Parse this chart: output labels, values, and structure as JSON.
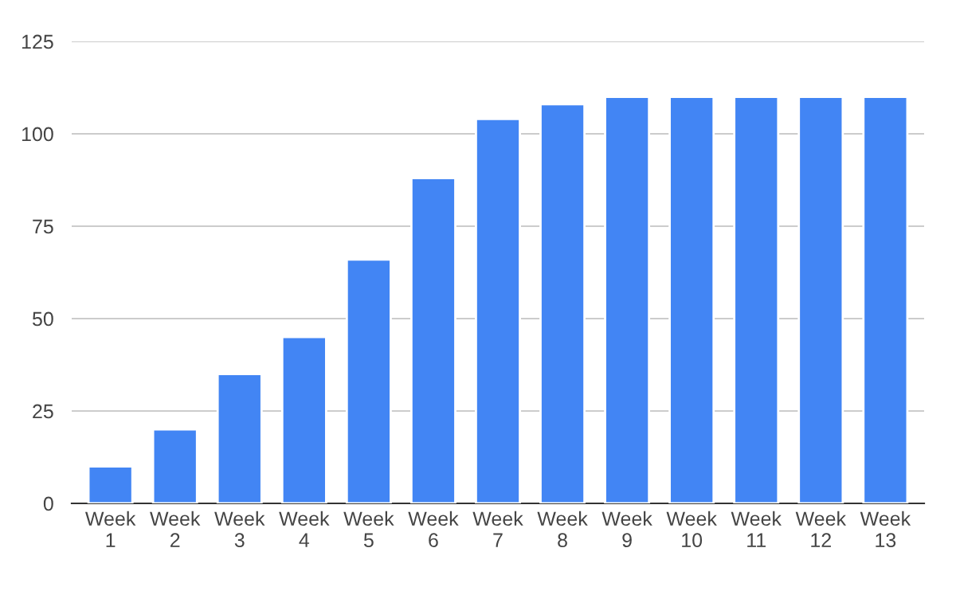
{
  "chart_data": {
    "type": "bar",
    "categories": [
      "Week 1",
      "Week 2",
      "Week 3",
      "Week 4",
      "Week 5",
      "Week 6",
      "Week 7",
      "Week 8",
      "Week 9",
      "Week 10",
      "Week 11",
      "Week 12",
      "Week 13"
    ],
    "values": [
      10,
      20,
      35,
      45,
      66,
      88,
      104,
      108,
      110,
      110,
      110,
      110,
      110
    ],
    "color": "#4285f4",
    "ylim": [
      0,
      125
    ],
    "yticks": [
      0,
      25,
      50,
      75,
      100,
      125
    ],
    "grid": "y",
    "legend": false
  }
}
